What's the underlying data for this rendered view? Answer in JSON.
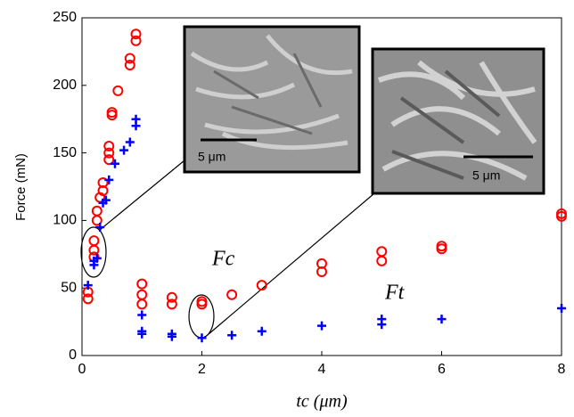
{
  "chart_data": {
    "type": "scatter",
    "y_label": "Force (mN)",
    "x_label": "tc (μm)",
    "xlim": [
      0,
      8
    ],
    "xticks": [
      0,
      2,
      4,
      6,
      8
    ],
    "ylim": [
      0,
      250
    ],
    "yticks": [
      0,
      50,
      100,
      150,
      200,
      250
    ],
    "series": [
      {
        "name": "Fc",
        "color": "#ff0000",
        "marker": "circle",
        "x": [
          0.1,
          0.1,
          0.2,
          0.2,
          0.2,
          0.25,
          0.25,
          0.3,
          0.35,
          0.35,
          0.45,
          0.45,
          0.45,
          0.5,
          0.5,
          0.6,
          0.8,
          0.8,
          0.9,
          0.9,
          1,
          1,
          1,
          1.5,
          1.5,
          2,
          2,
          2.5,
          3,
          4,
          4,
          5,
          5,
          6,
          6,
          8,
          8
        ],
        "values": [
          42,
          47,
          73,
          78,
          85,
          100,
          107,
          117,
          122,
          128,
          145,
          150,
          155,
          178,
          180,
          196,
          215,
          220,
          233,
          238,
          53,
          45,
          38,
          43,
          38,
          40,
          38,
          45,
          52,
          62,
          68,
          70,
          77,
          79,
          81,
          103,
          105
        ]
      },
      {
        "name": "Ft",
        "color": "#0000ff",
        "marker": "plus",
        "x": [
          0.1,
          0.2,
          0.2,
          0.25,
          0.3,
          0.35,
          0.4,
          0.45,
          0.55,
          0.7,
          0.8,
          0.9,
          0.9,
          1,
          1,
          1,
          1.5,
          1.5,
          2,
          2.5,
          3,
          4,
          5,
          5,
          6,
          8
        ],
        "values": [
          52,
          70,
          67,
          72,
          95,
          113,
          115,
          130,
          142,
          152,
          158,
          170,
          175,
          30,
          18,
          16,
          16,
          14,
          13,
          15,
          18,
          22,
          27,
          23,
          27,
          35
        ]
      }
    ],
    "insets": [
      {
        "scale_label": "5 μm"
      },
      {
        "scale_label": "5 μm"
      }
    ]
  }
}
